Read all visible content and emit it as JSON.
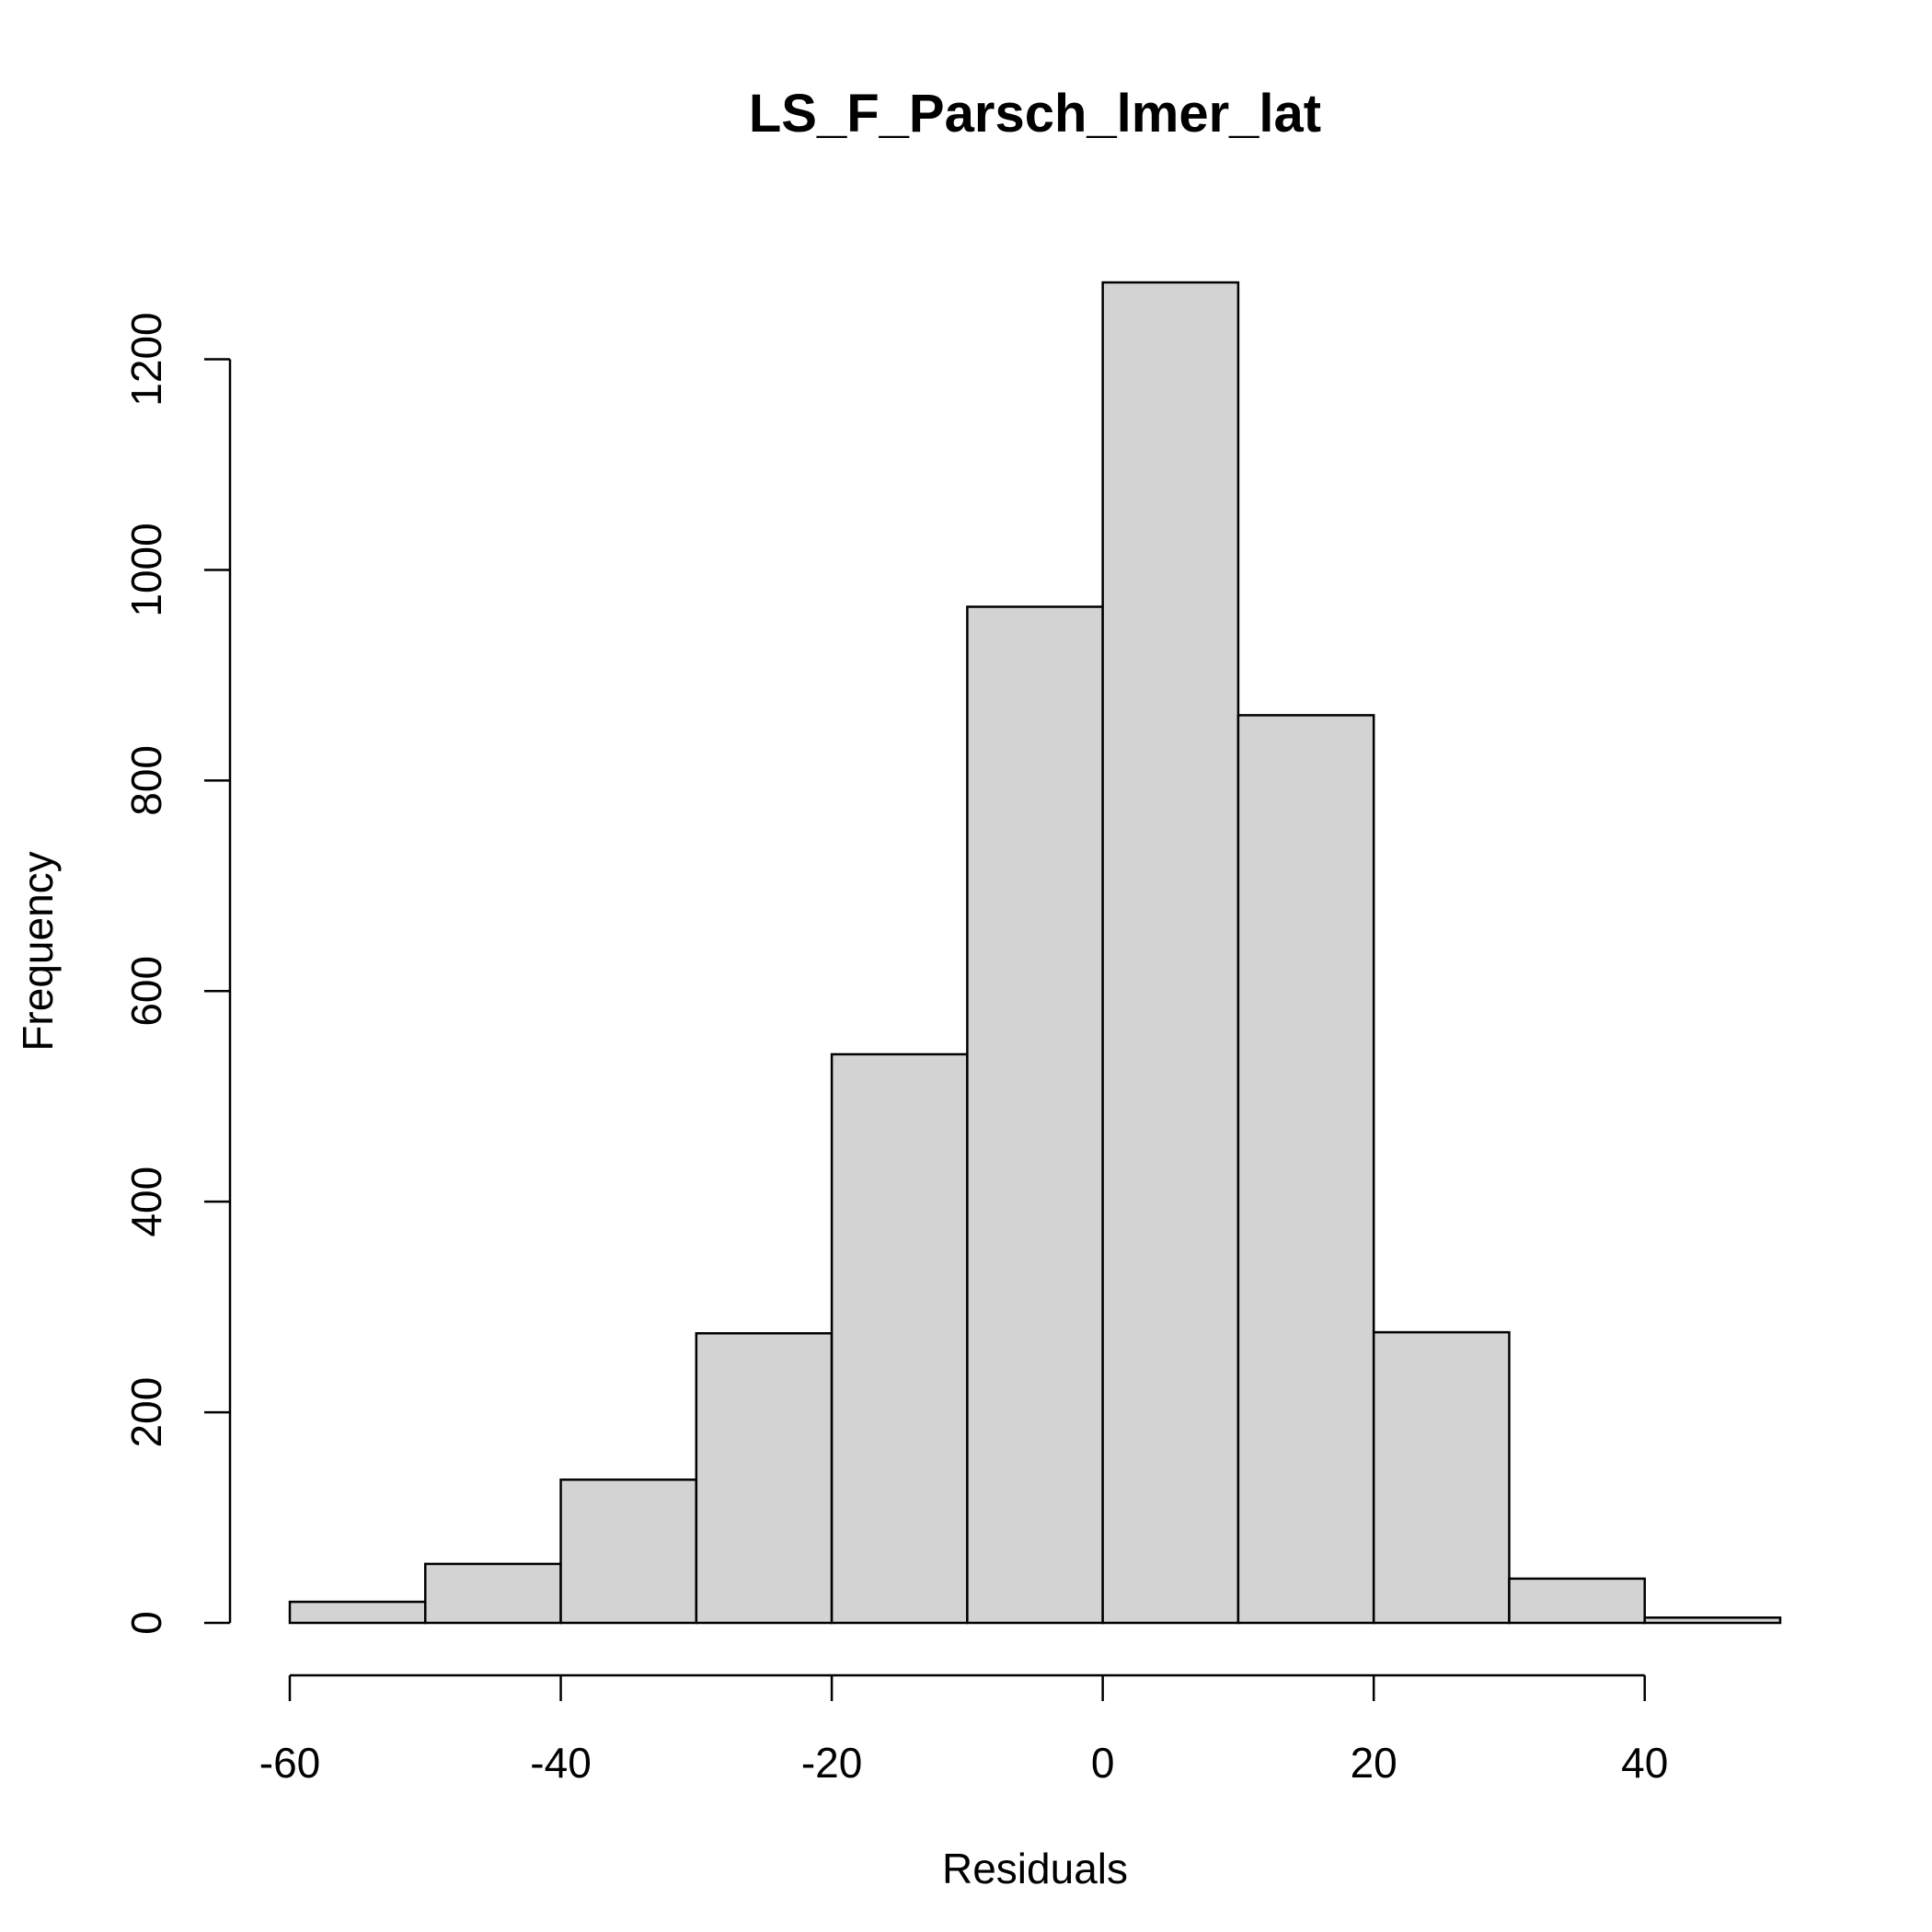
{
  "chart_data": {
    "type": "bar",
    "histogram": true,
    "title": "LS_F_Parsch_lmer_lat",
    "xlabel": "Residuals",
    "ylabel": "Frequency",
    "bins": [
      {
        "from": -60,
        "to": -50,
        "count": 20
      },
      {
        "from": -50,
        "to": -40,
        "count": 56
      },
      {
        "from": -40,
        "to": -30,
        "count": 136
      },
      {
        "from": -30,
        "to": -20,
        "count": 275
      },
      {
        "from": -20,
        "to": -10,
        "count": 540
      },
      {
        "from": -10,
        "to": 0,
        "count": 965
      },
      {
        "from": 0,
        "to": 10,
        "count": 1273
      },
      {
        "from": 10,
        "to": 20,
        "count": 862
      },
      {
        "from": 20,
        "to": 30,
        "count": 276
      },
      {
        "from": 30,
        "to": 40,
        "count": 42
      },
      {
        "from": 40,
        "to": 50,
        "count": 5
      }
    ],
    "xlim": [
      -60,
      50
    ],
    "ylim": [
      0,
      1273
    ],
    "x_ticks": [
      -60,
      -40,
      -20,
      0,
      20,
      40
    ],
    "x_tick_labels": [
      "-60",
      "-40",
      "-20",
      "0",
      "20",
      "40"
    ],
    "y_ticks": [
      0,
      200,
      400,
      600,
      800,
      1000,
      1200
    ],
    "y_tick_labels": [
      "0",
      "200",
      "400",
      "600",
      "800",
      "1000",
      "1200"
    ],
    "bar_color": "#d3d3d3",
    "edge_color": "#000000",
    "grid": false,
    "legend": false
  }
}
